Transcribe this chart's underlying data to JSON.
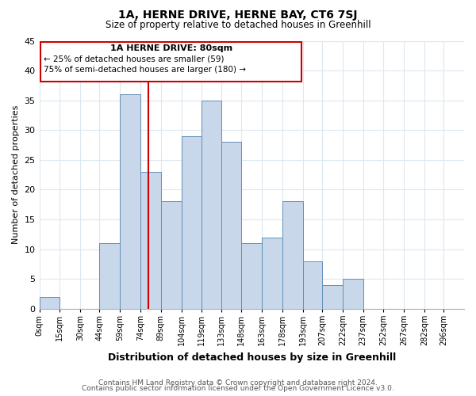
{
  "title": "1A, HERNE DRIVE, HERNE BAY, CT6 7SJ",
  "subtitle": "Size of property relative to detached houses in Greenhill",
  "xlabel": "Distribution of detached houses by size in Greenhill",
  "ylabel": "Number of detached properties",
  "bar_labels": [
    "0sqm",
    "15sqm",
    "30sqm",
    "44sqm",
    "59sqm",
    "74sqm",
    "89sqm",
    "104sqm",
    "119sqm",
    "133sqm",
    "148sqm",
    "163sqm",
    "178sqm",
    "193sqm",
    "207sqm",
    "222sqm",
    "237sqm",
    "252sqm",
    "267sqm",
    "282sqm",
    "296sqm"
  ],
  "bar_values": [
    2,
    0,
    0,
    11,
    36,
    23,
    18,
    29,
    35,
    28,
    11,
    12,
    18,
    8,
    4,
    5,
    0,
    0,
    0,
    0,
    0
  ],
  "bar_edges": [
    0,
    15,
    30,
    44,
    59,
    74,
    89,
    104,
    119,
    133,
    148,
    163,
    178,
    193,
    207,
    222,
    237,
    252,
    267,
    282,
    296
  ],
  "bar_color": "#c8d8ea",
  "bar_edgecolor": "#6090b8",
  "vline_x": 80,
  "vline_color": "#cc0000",
  "ylim": [
    0,
    45
  ],
  "yticks": [
    0,
    5,
    10,
    15,
    20,
    25,
    30,
    35,
    40,
    45
  ],
  "annotation_title": "1A HERNE DRIVE: 80sqm",
  "annotation_line1": "← 25% of detached houses are smaller (59)",
  "annotation_line2": "75% of semi-detached houses are larger (180) →",
  "footer_line1": "Contains HM Land Registry data © Crown copyright and database right 2024.",
  "footer_line2": "Contains public sector information licensed under the Open Government Licence v3.0.",
  "grid_color": "#dce8f0",
  "background_color": "#ffffff"
}
